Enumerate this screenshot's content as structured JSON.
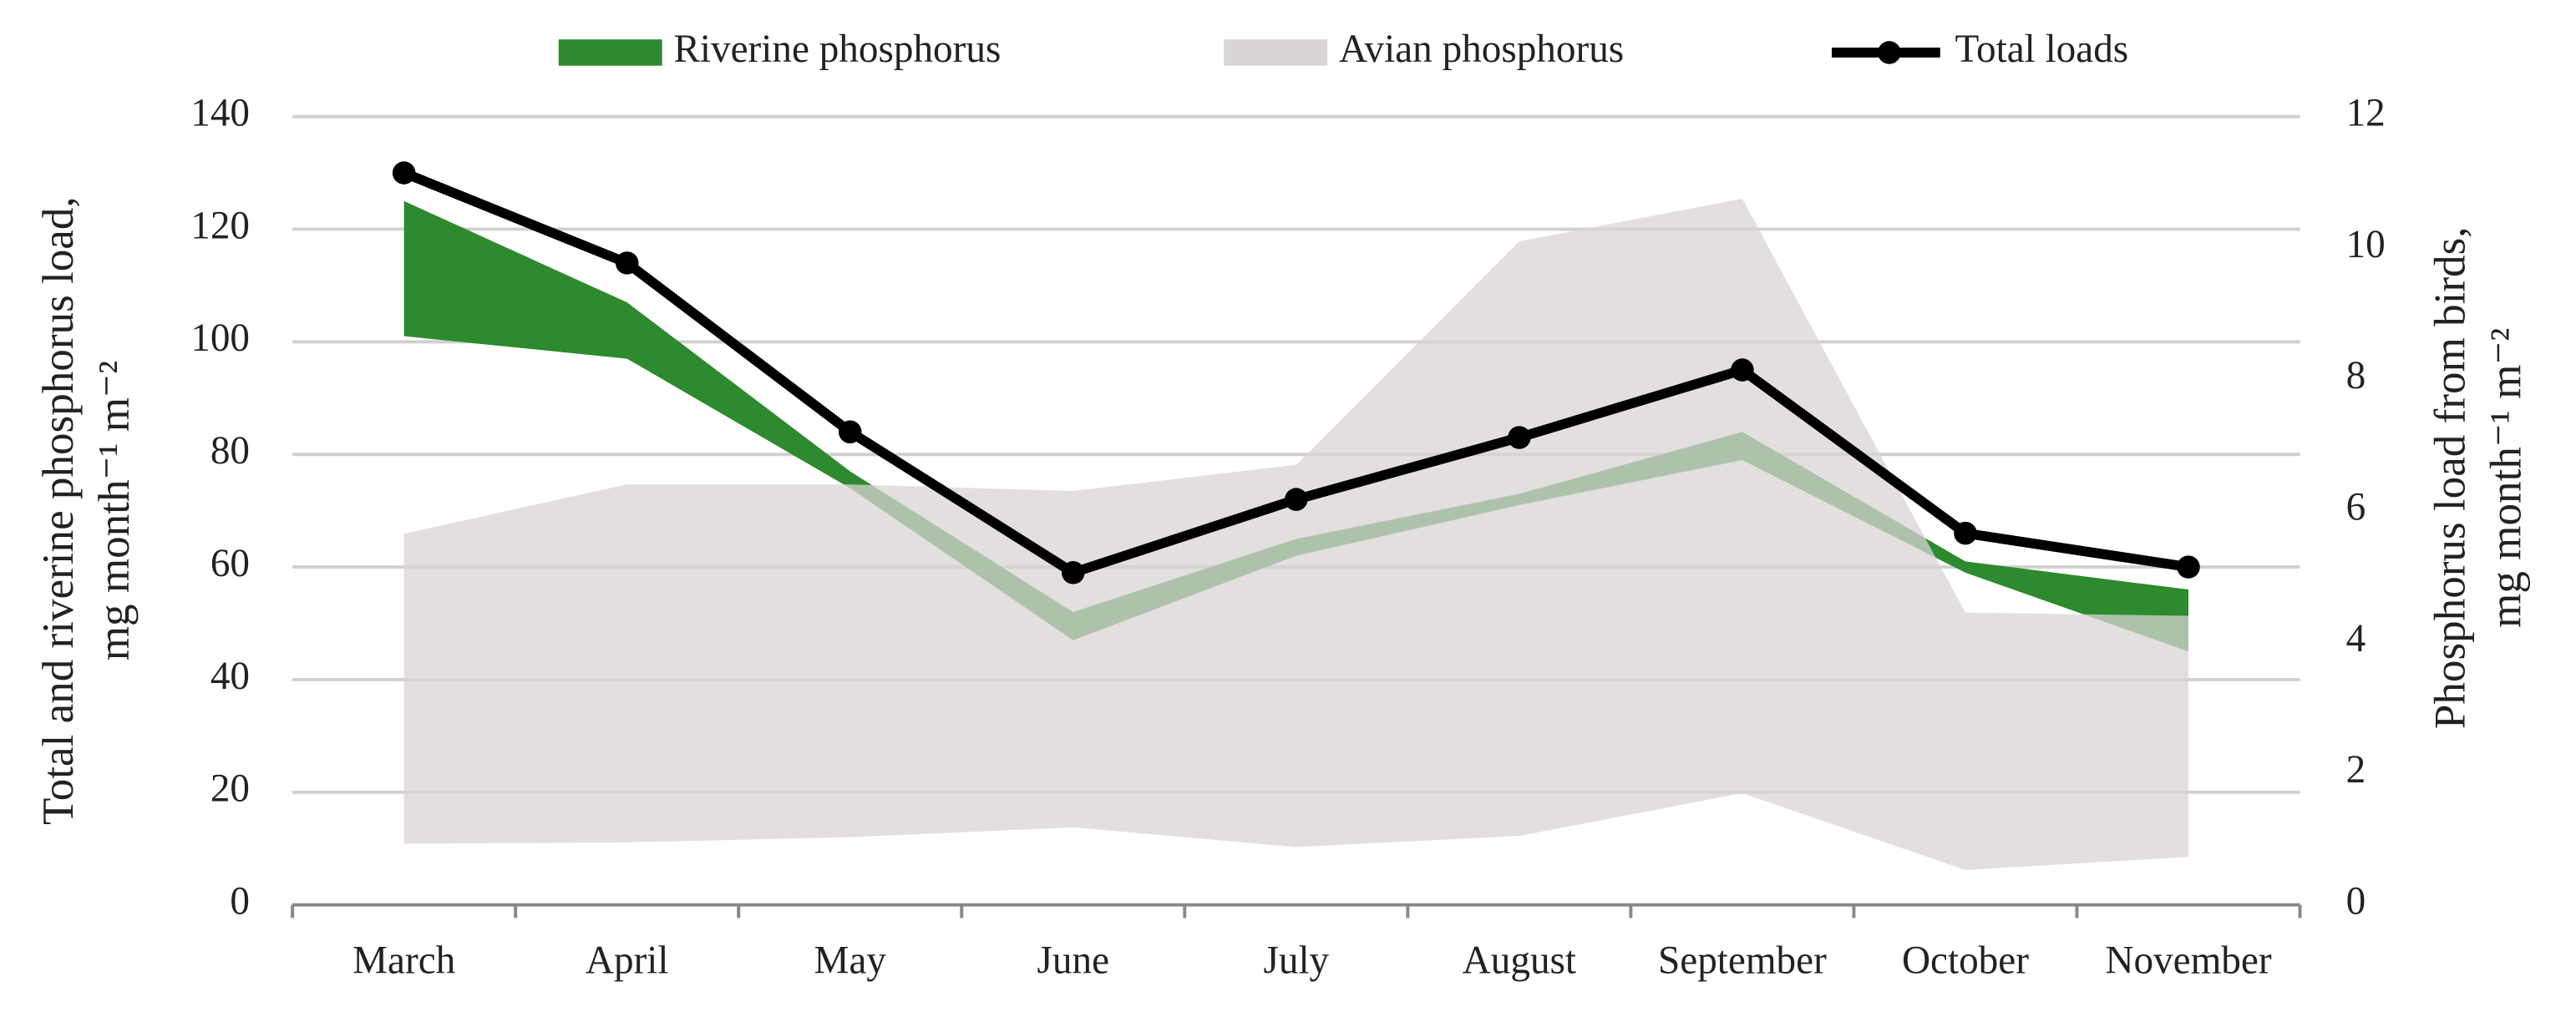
{
  "chart_data": {
    "type": "range-line",
    "categories": [
      "March",
      "April",
      "May",
      "June",
      "July",
      "August",
      "September",
      "October",
      "November"
    ],
    "series": [
      {
        "name": "Riverine phosphorus",
        "type": "range",
        "color": "#2e8a2e",
        "opacity": 1,
        "low": [
          101,
          97,
          74,
          47,
          62,
          71,
          79,
          59,
          45
        ],
        "high": [
          125,
          107,
          77,
          52,
          65,
          73,
          84,
          61,
          56
        ]
      },
      {
        "name": "Avian phosphorus",
        "type": "range",
        "axis": "y2",
        "color": "#d9d4d6",
        "opacity": 0.75,
        "low": [
          0.93,
          0.95,
          1.03,
          1.18,
          0.88,
          1.05,
          1.7,
          0.53,
          0.73
        ],
        "high": [
          5.65,
          6.4,
          6.4,
          6.3,
          6.7,
          10.1,
          10.75,
          4.45,
          4.4
        ]
      },
      {
        "name": "Total loads",
        "type": "line",
        "color": "#000000",
        "values": [
          130,
          114,
          84,
          59,
          72,
          83,
          95,
          66,
          60
        ]
      }
    ],
    "ylabel": [
      "Total and riverine phosphorus load,",
      "mg month⁻¹ m⁻²"
    ],
    "y2label": [
      "Phosphorus load from birds,",
      "mg month⁻¹ m⁻²"
    ],
    "ylim": [
      0,
      140
    ],
    "yticks": [
      0,
      20,
      40,
      60,
      80,
      100,
      120,
      140
    ],
    "y2lim": [
      0,
      12
    ],
    "y2ticks": [
      0,
      2,
      4,
      6,
      8,
      10,
      12
    ],
    "grid": true,
    "legend": "top"
  }
}
